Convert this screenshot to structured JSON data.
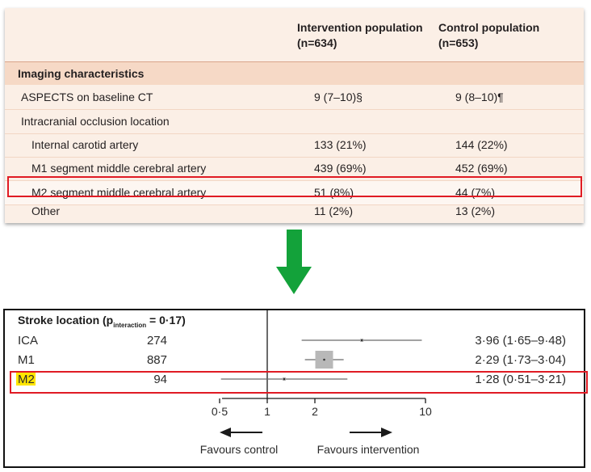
{
  "table": {
    "header": {
      "col1_line1": "Intervention population",
      "col1_line2": "(n=634)",
      "col2_line1": "Control population",
      "col2_line2": "(n=653)"
    },
    "section_title": "Imaging characteristics",
    "rows": [
      {
        "label": "ASPECTS on baseline CT",
        "c1": "9 (7–10)§",
        "c2": "9 (8–10)¶"
      },
      {
        "label": "Intracranial occlusion location",
        "c1": "",
        "c2": ""
      },
      {
        "label": "Internal carotid artery",
        "c1": "133 (21%)",
        "c2": "144 (22%)"
      },
      {
        "label": "M1 segment middle cerebral artery",
        "c1": "439 (69%)",
        "c2": "452 (69%)"
      },
      {
        "label": "M2 segment middle cerebral artery",
        "c1": "51 (8%)",
        "c2": "44 (7%)"
      },
      {
        "label": "Other",
        "c1": "11 (2%)",
        "c2": "13 (2%)"
      }
    ]
  },
  "forest": {
    "title_pre": "Stroke location (p",
    "title_sub": "interaction",
    "title_post": " = 0·17)",
    "rows": [
      {
        "label": "ICA",
        "n": "274",
        "ci_text": "3·96 (1·65–9·48)",
        "or": 3.96,
        "lo": 1.65,
        "hi": 9.48
      },
      {
        "label": "M1",
        "n": "887",
        "ci_text": "2·29 (1·73–3·04)",
        "or": 2.29,
        "lo": 1.73,
        "hi": 3.04
      },
      {
        "label": "M2",
        "n": "94",
        "ci_text": "1·28 (0·51–3·21)",
        "or": 1.28,
        "lo": 0.51,
        "hi": 3.21
      }
    ],
    "axis_ticks": [
      "0·5",
      "1",
      "2",
      "10"
    ],
    "favours_control": "Favours control",
    "favours_intervention": "Favours intervention"
  },
  "colors": {
    "highlight_border": "#e01b24",
    "arrow": "#13a23a",
    "m2_highlight": "#ffe600",
    "table_bg": "#fbefe6",
    "section_bg": "#f6d9c6"
  }
}
